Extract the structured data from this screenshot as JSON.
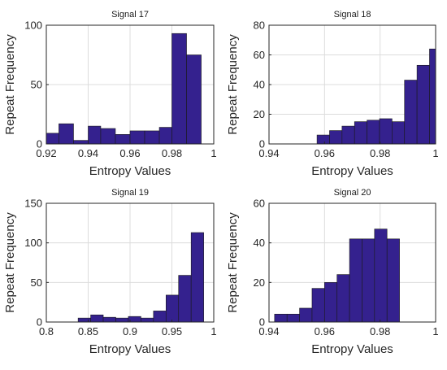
{
  "chart_data": [
    {
      "type": "bar",
      "title": "Signal 17",
      "xlabel": "Entropy Values",
      "ylabel": "Repeat Frequency",
      "xlim": [
        0.92,
        1.0
      ],
      "ylim": [
        0,
        100
      ],
      "xticks": [
        "0.92",
        "0.94",
        "0.96",
        "0.98",
        "1"
      ],
      "yticks": [
        "0",
        "50",
        "100"
      ],
      "bins": [
        {
          "x0": 0.92,
          "x1": 0.926,
          "value": 9
        },
        {
          "x0": 0.926,
          "x1": 0.933,
          "value": 17
        },
        {
          "x0": 0.933,
          "x1": 0.94,
          "value": 3
        },
        {
          "x0": 0.94,
          "x1": 0.946,
          "value": 15
        },
        {
          "x0": 0.946,
          "x1": 0.953,
          "value": 13
        },
        {
          "x0": 0.953,
          "x1": 0.96,
          "value": 8
        },
        {
          "x0": 0.96,
          "x1": 0.967,
          "value": 11
        },
        {
          "x0": 0.967,
          "x1": 0.974,
          "value": 11
        },
        {
          "x0": 0.974,
          "x1": 0.98,
          "value": 14
        },
        {
          "x0": 0.98,
          "x1": 0.987,
          "value": 93
        },
        {
          "x0": 0.987,
          "x1": 0.994,
          "value": 75
        }
      ]
    },
    {
      "type": "bar",
      "title": "Signal 18",
      "xlabel": "Entropy Values",
      "ylabel": "Repeat Frequency",
      "xlim": [
        0.94,
        1.0
      ],
      "ylim": [
        0,
        80
      ],
      "xticks": [
        "0.94",
        "0.96",
        "0.98",
        "1"
      ],
      "yticks": [
        "0",
        "20",
        "40",
        "60",
        "80"
      ],
      "bins": [
        {
          "x0": 0.9573,
          "x1": 0.9618,
          "value": 6
        },
        {
          "x0": 0.9618,
          "x1": 0.9663,
          "value": 9
        },
        {
          "x0": 0.9663,
          "x1": 0.9708,
          "value": 12
        },
        {
          "x0": 0.9708,
          "x1": 0.9753,
          "value": 15
        },
        {
          "x0": 0.9753,
          "x1": 0.9798,
          "value": 16
        },
        {
          "x0": 0.9798,
          "x1": 0.9843,
          "value": 17
        },
        {
          "x0": 0.9843,
          "x1": 0.9888,
          "value": 15
        },
        {
          "x0": 0.9888,
          "x1": 0.9933,
          "value": 43
        },
        {
          "x0": 0.9933,
          "x1": 0.9978,
          "value": 53
        },
        {
          "x0": 0.9978,
          "x1": 1.0023,
          "value": 64
        }
      ]
    },
    {
      "type": "bar",
      "title": "Signal 19",
      "xlabel": "Entropy Values",
      "ylabel": "Repeat Frequency",
      "xlim": [
        0.8,
        1.0
      ],
      "ylim": [
        0,
        150
      ],
      "xticks": [
        "0.8",
        "0.85",
        "0.9",
        "0.95",
        "1"
      ],
      "yticks": [
        "0",
        "50",
        "100",
        "150"
      ],
      "bins": [
        {
          "x0": 0.838,
          "x1": 0.853,
          "value": 5
        },
        {
          "x0": 0.853,
          "x1": 0.868,
          "value": 9
        },
        {
          "x0": 0.868,
          "x1": 0.883,
          "value": 6
        },
        {
          "x0": 0.883,
          "x1": 0.898,
          "value": 5
        },
        {
          "x0": 0.898,
          "x1": 0.913,
          "value": 7
        },
        {
          "x0": 0.913,
          "x1": 0.928,
          "value": 5
        },
        {
          "x0": 0.928,
          "x1": 0.943,
          "value": 14
        },
        {
          "x0": 0.943,
          "x1": 0.958,
          "value": 34
        },
        {
          "x0": 0.958,
          "x1": 0.973,
          "value": 59
        },
        {
          "x0": 0.973,
          "x1": 0.988,
          "value": 113
        }
      ]
    },
    {
      "type": "bar",
      "title": "Signal 20",
      "xlabel": "Entropy Values",
      "ylabel": "Repeat Frequency",
      "xlim": [
        0.94,
        1.0
      ],
      "ylim": [
        0,
        60
      ],
      "xticks": [
        "0.94",
        "0.96",
        "0.98",
        "1"
      ],
      "yticks": [
        "0",
        "20",
        "40",
        "60"
      ],
      "bins": [
        {
          "x0": 0.942,
          "x1": 0.9465,
          "value": 4
        },
        {
          "x0": 0.9465,
          "x1": 0.951,
          "value": 4
        },
        {
          "x0": 0.951,
          "x1": 0.9555,
          "value": 7
        },
        {
          "x0": 0.9555,
          "x1": 0.96,
          "value": 17
        },
        {
          "x0": 0.96,
          "x1": 0.9645,
          "value": 20
        },
        {
          "x0": 0.9645,
          "x1": 0.969,
          "value": 24
        },
        {
          "x0": 0.969,
          "x1": 0.9735,
          "value": 42
        },
        {
          "x0": 0.9735,
          "x1": 0.978,
          "value": 42
        },
        {
          "x0": 0.978,
          "x1": 0.9825,
          "value": 47
        },
        {
          "x0": 0.9825,
          "x1": 0.987,
          "value": 42
        }
      ]
    }
  ]
}
